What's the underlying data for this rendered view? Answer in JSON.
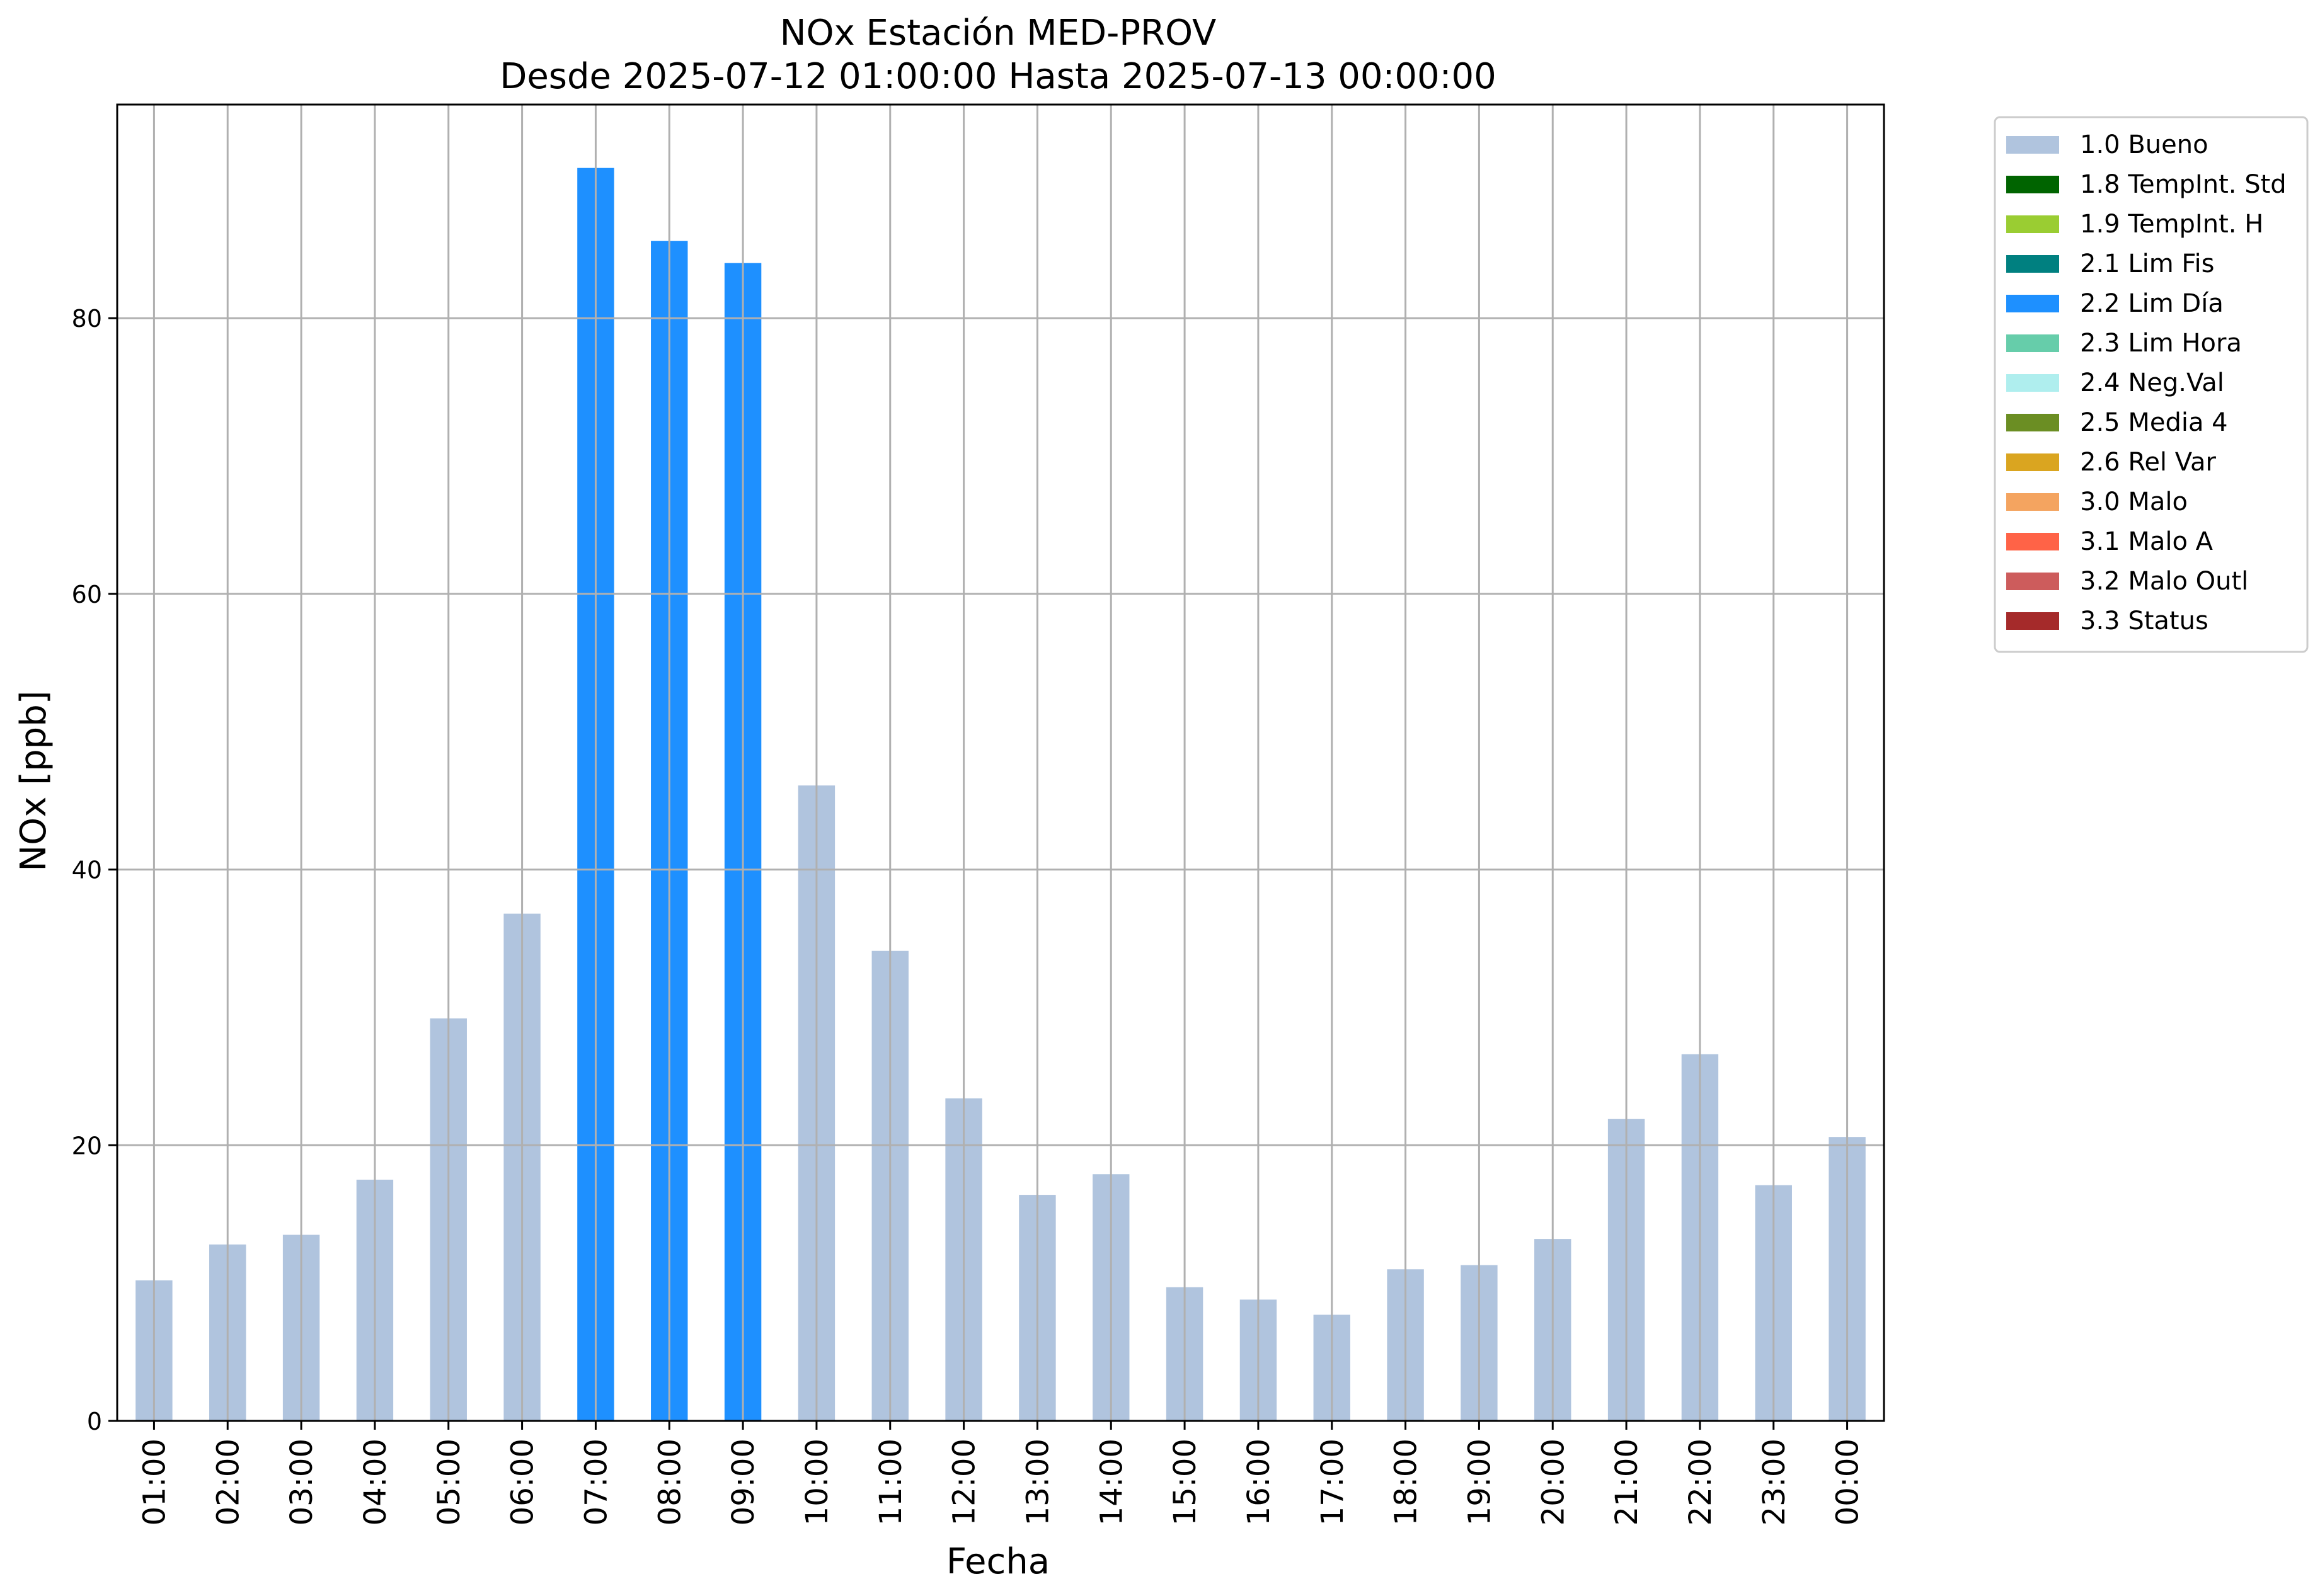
{
  "chart_data": {
    "type": "bar",
    "title": "NOx Estación MED-PROV",
    "subtitle": "Desde 2025-07-12 01:00:00 Hasta 2025-07-13 00:00:00",
    "xlabel": "Fecha",
    "ylabel": "NOx [ppb]",
    "ylim": [
      0,
      95.5
    ],
    "yticks": [
      0,
      20,
      40,
      60,
      80
    ],
    "grid": true,
    "legend_placement": "outside-top-right",
    "categories": [
      "01:00",
      "02:00",
      "03:00",
      "04:00",
      "05:00",
      "06:00",
      "07:00",
      "08:00",
      "09:00",
      "10:00",
      "11:00",
      "12:00",
      "13:00",
      "14:00",
      "15:00",
      "16:00",
      "17:00",
      "18:00",
      "19:00",
      "20:00",
      "21:00",
      "22:00",
      "23:00",
      "00:00"
    ],
    "values": [
      10.2,
      12.8,
      13.5,
      17.5,
      29.2,
      36.8,
      90.9,
      85.6,
      84.0,
      46.1,
      34.1,
      23.4,
      16.4,
      17.9,
      9.7,
      8.8,
      7.7,
      11.0,
      11.3,
      13.2,
      21.9,
      26.6,
      17.1,
      20.6
    ],
    "flags": [
      "1.0 Bueno",
      "1.0 Bueno",
      "1.0 Bueno",
      "1.0 Bueno",
      "1.0 Bueno",
      "1.0 Bueno",
      "2.2 Lim Día",
      "2.2 Lim Día",
      "2.2 Lim Día",
      "1.0 Bueno",
      "1.0 Bueno",
      "1.0 Bueno",
      "1.0 Bueno",
      "1.0 Bueno",
      "1.0 Bueno",
      "1.0 Bueno",
      "1.0 Bueno",
      "1.0 Bueno",
      "1.0 Bueno",
      "1.0 Bueno",
      "1.0 Bueno",
      "1.0 Bueno",
      "1.0 Bueno",
      "1.0 Bueno"
    ],
    "legend": [
      {
        "name": "1.0 Bueno",
        "color": "#b0c4de"
      },
      {
        "name": "1.8 TempInt. Std",
        "color": "#006400"
      },
      {
        "name": "1.9 TempInt. H",
        "color": "#9acd32"
      },
      {
        "name": "2.1 Lim Fis",
        "color": "#008080"
      },
      {
        "name": "2.2 Lim Día",
        "color": "#1e90ff"
      },
      {
        "name": "2.3 Lim Hora",
        "color": "#66cdaa"
      },
      {
        "name": "2.4 Neg.Val",
        "color": "#afeeee"
      },
      {
        "name": "2.5 Media 4",
        "color": "#6b8e23"
      },
      {
        "name": "2.6 Rel Var",
        "color": "#daa520"
      },
      {
        "name": "3.0 Malo",
        "color": "#f4a460"
      },
      {
        "name": "3.1 Malo A",
        "color": "#ff6347"
      },
      {
        "name": "3.2 Malo Outl",
        "color": "#cd5c5c"
      },
      {
        "name": "3.3 Status",
        "color": "#a52a2a"
      }
    ]
  }
}
